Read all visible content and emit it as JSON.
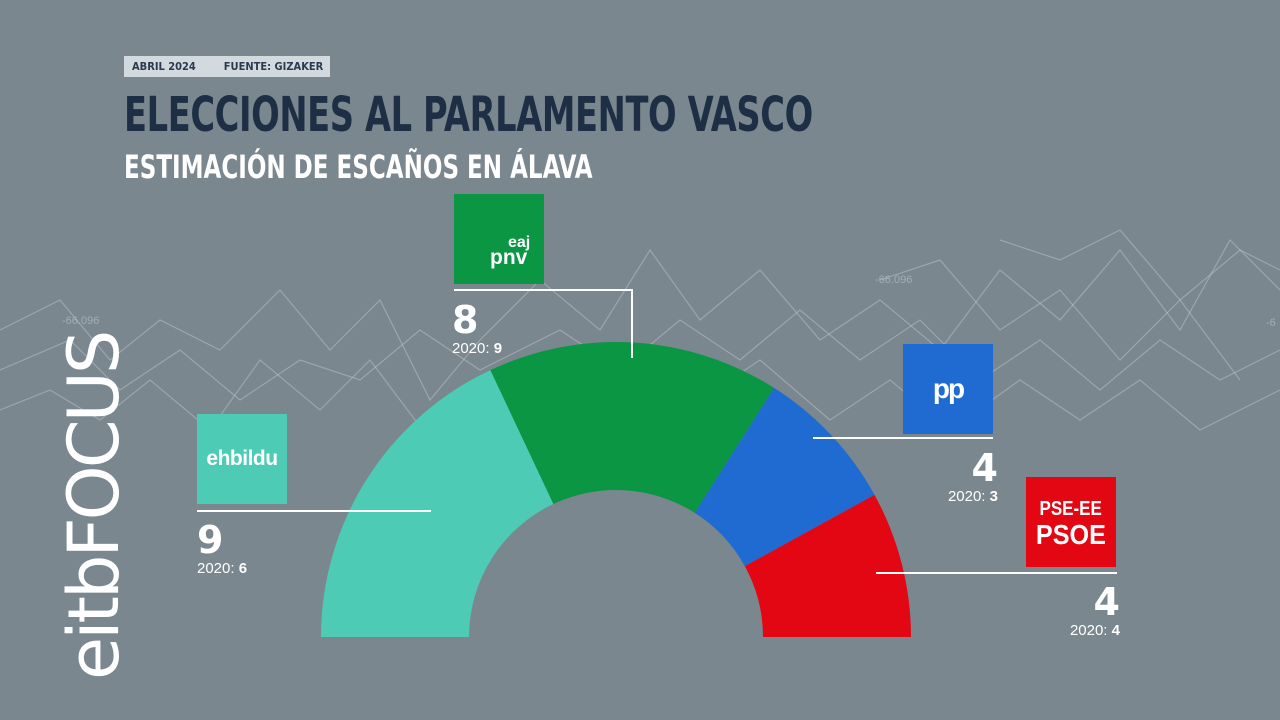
{
  "header": {
    "date": "ABRIL 2024",
    "source": "FUENTE: GIZAKER",
    "title": "ELECCIONES AL PARLAMENTO VASCO",
    "subtitle": "ESTIMACIÓN DE ESCAÑOS EN ÁLAVA"
  },
  "brand": {
    "text": "eitbFOCUS"
  },
  "logos": {
    "ehbildu": "ehbildu",
    "pnv_top": "eaj",
    "pnv_bottom": "pnv",
    "pp": "pp",
    "psoe_top": "PSE-EE",
    "psoe_bottom": "PSOE"
  },
  "prev_label": "2020:",
  "colors": {
    "background": "#7a878f",
    "ehbildu": "#4dcbb4",
    "pnv": "#0a9643",
    "pp": "#1f6bd1",
    "psoe": "#e30613"
  },
  "chart_data": {
    "type": "pie",
    "subtype": "parliament-half-donut",
    "title": "ESTIMACIÓN DE ESCAÑOS EN ÁLAVA",
    "total": 25,
    "series": [
      {
        "name": "EH Bildu",
        "seats": 9,
        "seats_2020": 6,
        "color": "#4dcbb4",
        "icon": "ehbildu-logo"
      },
      {
        "name": "EAJ-PNV",
        "seats": 8,
        "seats_2020": 9,
        "color": "#0a9643",
        "icon": "pnv-logo"
      },
      {
        "name": "PP",
        "seats": 4,
        "seats_2020": 3,
        "color": "#1f6bd1",
        "icon": "pp-logo"
      },
      {
        "name": "PSE-EE PSOE",
        "seats": 4,
        "seats_2020": 4,
        "color": "#e30613",
        "icon": "psoe-logo"
      }
    ]
  }
}
